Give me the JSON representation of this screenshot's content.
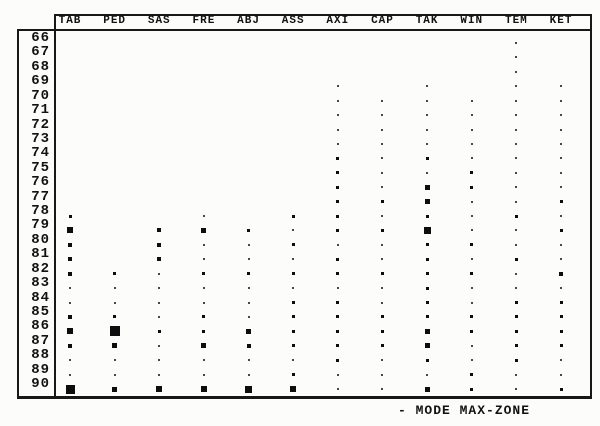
{
  "figure": {
    "legend_text": "- MODE MAX-ZONE"
  },
  "chart_data": {
    "type": "scatter",
    "title": "",
    "xlabel": "",
    "ylabel": "",
    "x_categories": [
      "TAB",
      "PED",
      "SAS",
      "FRE",
      "ABJ",
      "ASS",
      "AXI",
      "CAP",
      "TAK",
      "WIN",
      "TEM",
      "KET"
    ],
    "y_axis": {
      "min": 66,
      "max": 90,
      "tick_labels": [
        "66",
        "67",
        "68",
        "69",
        "70",
        "71",
        "72",
        "73",
        "74",
        "75",
        "76",
        "77",
        "78",
        "79",
        "80",
        "81",
        "82",
        "83",
        "84",
        "85",
        "86",
        "87",
        "88",
        "89",
        "90"
      ]
    },
    "legend": "- MODE MAX-ZONE",
    "legend_position": "bottom-right",
    "grid": false,
    "marker": "filled-square",
    "size_unit": "px",
    "series": [
      {
        "name": "TAB",
        "points": [
          [
            78,
            3
          ],
          [
            79,
            6
          ],
          [
            80,
            4
          ],
          [
            81,
            4
          ],
          [
            82,
            4
          ],
          [
            83,
            2
          ],
          [
            84,
            2
          ],
          [
            85,
            4
          ],
          [
            86,
            6
          ],
          [
            87,
            4
          ],
          [
            88,
            2
          ],
          [
            89,
            2
          ],
          [
            90,
            9
          ]
        ]
      },
      {
        "name": "PED",
        "points": [
          [
            82,
            3
          ],
          [
            83,
            2
          ],
          [
            84,
            2
          ],
          [
            85,
            3
          ],
          [
            86,
            10
          ],
          [
            87,
            5
          ],
          [
            88,
            2
          ],
          [
            89,
            2
          ],
          [
            90,
            5
          ]
        ]
      },
      {
        "name": "SAS",
        "points": [
          [
            79,
            4
          ],
          [
            80,
            4
          ],
          [
            81,
            4
          ],
          [
            82,
            2
          ],
          [
            83,
            2
          ],
          [
            84,
            2
          ],
          [
            85,
            2
          ],
          [
            86,
            3
          ],
          [
            87,
            2
          ],
          [
            88,
            2
          ],
          [
            89,
            2
          ],
          [
            90,
            6
          ]
        ]
      },
      {
        "name": "FRE",
        "points": [
          [
            78,
            2
          ],
          [
            79,
            5
          ],
          [
            80,
            2
          ],
          [
            81,
            2
          ],
          [
            82,
            3
          ],
          [
            83,
            2
          ],
          [
            84,
            2
          ],
          [
            85,
            3
          ],
          [
            86,
            3
          ],
          [
            87,
            5
          ],
          [
            88,
            2
          ],
          [
            89,
            2
          ],
          [
            90,
            6
          ]
        ]
      },
      {
        "name": "ABJ",
        "points": [
          [
            79,
            3
          ],
          [
            80,
            2
          ],
          [
            81,
            2
          ],
          [
            82,
            3
          ],
          [
            83,
            2
          ],
          [
            84,
            2
          ],
          [
            85,
            2
          ],
          [
            86,
            5
          ],
          [
            87,
            4
          ],
          [
            88,
            2
          ],
          [
            89,
            2
          ],
          [
            90,
            7
          ]
        ]
      },
      {
        "name": "ASS",
        "points": [
          [
            78,
            3
          ],
          [
            79,
            2
          ],
          [
            80,
            3
          ],
          [
            81,
            2
          ],
          [
            82,
            3
          ],
          [
            83,
            2
          ],
          [
            84,
            3
          ],
          [
            85,
            3
          ],
          [
            86,
            3
          ],
          [
            87,
            3
          ],
          [
            88,
            2
          ],
          [
            89,
            3
          ],
          [
            90,
            6
          ]
        ]
      },
      {
        "name": "AXI",
        "points": [
          [
            69,
            2
          ],
          [
            70,
            2
          ],
          [
            71,
            2
          ],
          [
            72,
            2
          ],
          [
            73,
            2
          ],
          [
            74,
            3
          ],
          [
            75,
            3
          ],
          [
            76,
            3
          ],
          [
            77,
            3
          ],
          [
            78,
            3
          ],
          [
            79,
            3
          ],
          [
            80,
            2
          ],
          [
            81,
            3
          ],
          [
            82,
            3
          ],
          [
            83,
            2
          ],
          [
            84,
            3
          ],
          [
            85,
            3
          ],
          [
            86,
            3
          ],
          [
            87,
            3
          ],
          [
            88,
            3
          ],
          [
            89,
            2
          ],
          [
            90,
            2
          ]
        ]
      },
      {
        "name": "CAP",
        "points": [
          [
            70,
            2
          ],
          [
            71,
            2
          ],
          [
            72,
            2
          ],
          [
            73,
            2
          ],
          [
            74,
            2
          ],
          [
            75,
            2
          ],
          [
            76,
            2
          ],
          [
            77,
            3
          ],
          [
            78,
            2
          ],
          [
            79,
            3
          ],
          [
            80,
            2
          ],
          [
            81,
            2
          ],
          [
            82,
            3
          ],
          [
            83,
            2
          ],
          [
            84,
            2
          ],
          [
            85,
            3
          ],
          [
            86,
            3
          ],
          [
            87,
            3
          ],
          [
            88,
            2
          ],
          [
            89,
            2
          ],
          [
            90,
            2
          ]
        ]
      },
      {
        "name": "TAK",
        "points": [
          [
            69,
            2
          ],
          [
            70,
            2
          ],
          [
            71,
            2
          ],
          [
            72,
            2
          ],
          [
            73,
            2
          ],
          [
            74,
            3
          ],
          [
            75,
            2
          ],
          [
            76,
            5
          ],
          [
            77,
            5
          ],
          [
            78,
            3
          ],
          [
            79,
            7
          ],
          [
            80,
            3
          ],
          [
            81,
            3
          ],
          [
            82,
            3
          ],
          [
            83,
            3
          ],
          [
            84,
            3
          ],
          [
            85,
            3
          ],
          [
            86,
            5
          ],
          [
            87,
            5
          ],
          [
            88,
            3
          ],
          [
            89,
            2
          ],
          [
            90,
            5
          ]
        ]
      },
      {
        "name": "WIN",
        "points": [
          [
            70,
            2
          ],
          [
            71,
            2
          ],
          [
            72,
            2
          ],
          [
            73,
            2
          ],
          [
            74,
            2
          ],
          [
            75,
            3
          ],
          [
            76,
            3
          ],
          [
            77,
            2
          ],
          [
            78,
            2
          ],
          [
            79,
            2
          ],
          [
            80,
            3
          ],
          [
            81,
            2
          ],
          [
            82,
            3
          ],
          [
            83,
            2
          ],
          [
            84,
            2
          ],
          [
            85,
            3
          ],
          [
            86,
            3
          ],
          [
            87,
            2
          ],
          [
            88,
            2
          ],
          [
            89,
            3
          ],
          [
            90,
            3
          ]
        ]
      },
      {
        "name": "TEM",
        "points": [
          [
            66,
            2
          ],
          [
            67,
            2
          ],
          [
            68,
            2
          ],
          [
            69,
            2
          ],
          [
            70,
            2
          ],
          [
            71,
            2
          ],
          [
            72,
            2
          ],
          [
            73,
            2
          ],
          [
            74,
            2
          ],
          [
            75,
            2
          ],
          [
            76,
            2
          ],
          [
            77,
            2
          ],
          [
            78,
            3
          ],
          [
            79,
            2
          ],
          [
            80,
            2
          ],
          [
            81,
            3
          ],
          [
            82,
            2
          ],
          [
            83,
            2
          ],
          [
            84,
            3
          ],
          [
            85,
            3
          ],
          [
            86,
            3
          ],
          [
            87,
            3
          ],
          [
            88,
            3
          ],
          [
            89,
            2
          ],
          [
            90,
            2
          ]
        ]
      },
      {
        "name": "KET",
        "points": [
          [
            69,
            2
          ],
          [
            70,
            2
          ],
          [
            71,
            2
          ],
          [
            72,
            2
          ],
          [
            73,
            2
          ],
          [
            74,
            2
          ],
          [
            75,
            2
          ],
          [
            76,
            2
          ],
          [
            77,
            3
          ],
          [
            78,
            2
          ],
          [
            79,
            3
          ],
          [
            80,
            2
          ],
          [
            81,
            2
          ],
          [
            82,
            4
          ],
          [
            83,
            2
          ],
          [
            84,
            3
          ],
          [
            85,
            3
          ],
          [
            86,
            3
          ],
          [
            87,
            3
          ],
          [
            88,
            2
          ],
          [
            89,
            2
          ],
          [
            90,
            3
          ]
        ]
      }
    ]
  }
}
